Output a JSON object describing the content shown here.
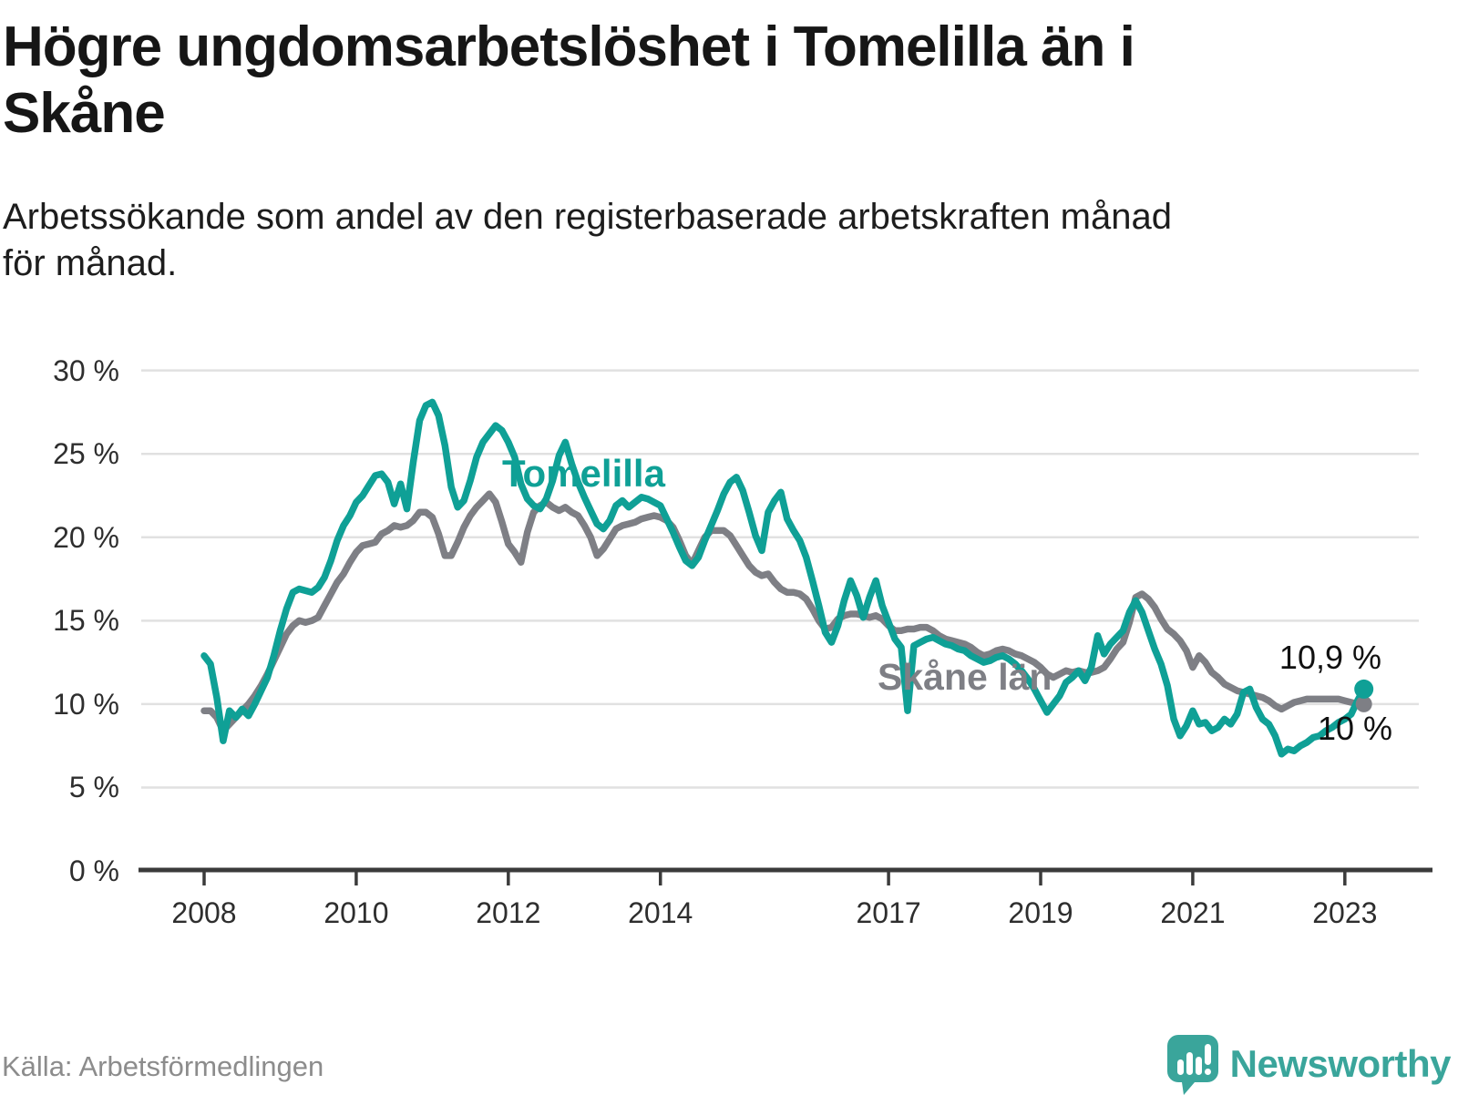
{
  "title_lines": [
    "Högre ungdomsarbetslöshet i Tomelilla än i",
    "Skåne"
  ],
  "subtitle_lines": [
    "Arbetssökande som andel av den registerbaserade arbetskraften månad",
    "för månad."
  ],
  "source_text": "Källa: Arbetsförmedlingen",
  "brand": {
    "name": "Newsworthy",
    "icon": "newsworthy-pin-barchart-icon",
    "color": "#3aa59b"
  },
  "chart_data": {
    "type": "line",
    "x_unit": "month",
    "x_start": "2008-01",
    "x_end": "2023-04",
    "x_tick_years": [
      2008,
      2010,
      2012,
      2014,
      2017,
      2019,
      2021,
      2023
    ],
    "y_ticks_percent": [
      0,
      5,
      10,
      15,
      20,
      25,
      30
    ],
    "y_tick_suffix": " %",
    "ylim": [
      0,
      31
    ],
    "grid": "horizontal",
    "legend": "inline-labels",
    "series": [
      {
        "name": "Skåne län",
        "color": "#7e7f85",
        "end_label": "10 %",
        "end_value": 10.0,
        "values": [
          9.6,
          9.6,
          9.2,
          8.4,
          8.8,
          9.2,
          9.6,
          10.0,
          10.5,
          11.1,
          11.8,
          12.6,
          13.4,
          14.2,
          14.7,
          15.0,
          14.9,
          15.0,
          15.2,
          15.9,
          16.6,
          17.3,
          17.8,
          18.5,
          19.1,
          19.5,
          19.6,
          19.7,
          20.2,
          20.4,
          20.7,
          20.6,
          20.7,
          21.0,
          21.5,
          21.5,
          21.2,
          20.2,
          18.9,
          18.9,
          19.7,
          20.6,
          21.3,
          21.8,
          22.2,
          22.6,
          22.1,
          20.9,
          19.6,
          19.1,
          18.5,
          20.3,
          21.5,
          21.9,
          22.1,
          21.8,
          21.6,
          21.8,
          21.5,
          21.3,
          20.7,
          20.0,
          18.9,
          19.3,
          19.9,
          20.5,
          20.7,
          20.8,
          20.9,
          21.1,
          21.2,
          21.3,
          21.2,
          21.0,
          20.6,
          19.8,
          18.9,
          18.4,
          19.2,
          20.0,
          20.4,
          20.4,
          20.4,
          20.1,
          19.5,
          18.9,
          18.3,
          17.9,
          17.7,
          17.8,
          17.3,
          16.9,
          16.7,
          16.7,
          16.6,
          16.3,
          15.7,
          15.0,
          14.5,
          14.6,
          15.1,
          15.3,
          15.4,
          15.4,
          15.3,
          15.2,
          15.3,
          15.1,
          14.7,
          14.4,
          14.4,
          14.5,
          14.5,
          14.6,
          14.6,
          14.4,
          14.1,
          13.9,
          13.8,
          13.7,
          13.6,
          13.4,
          13.1,
          12.9,
          13.0,
          13.2,
          13.3,
          13.2,
          13.0,
          12.9,
          12.7,
          12.5,
          12.2,
          11.8,
          11.6,
          11.8,
          12.0,
          11.9,
          12.0,
          11.9,
          11.9,
          12.0,
          12.2,
          12.7,
          13.3,
          13.7,
          14.9,
          16.4,
          16.6,
          16.3,
          15.8,
          15.1,
          14.5,
          14.2,
          13.8,
          13.2,
          12.2,
          12.9,
          12.5,
          11.9,
          11.6,
          11.2,
          11.0,
          10.8,
          10.7,
          10.6,
          10.5,
          10.4,
          10.2,
          9.9,
          9.7,
          9.9,
          10.1,
          10.2,
          10.3,
          10.3,
          10.3,
          10.3,
          10.3,
          10.3,
          10.2,
          10.1,
          10.0,
          10.0
        ]
      },
      {
        "name": "Tomelilla",
        "color": "#0fa096",
        "end_label": "10,9 %",
        "end_value": 10.9,
        "values": [
          12.9,
          12.4,
          10.4,
          7.8,
          9.6,
          9.2,
          9.7,
          9.3,
          10.0,
          10.8,
          11.6,
          12.9,
          14.4,
          15.7,
          16.7,
          16.9,
          16.8,
          16.7,
          17.0,
          17.6,
          18.6,
          19.8,
          20.7,
          21.3,
          22.1,
          22.5,
          23.1,
          23.7,
          23.8,
          23.3,
          22.0,
          23.2,
          21.7,
          24.5,
          27.0,
          27.9,
          28.1,
          27.3,
          25.5,
          23.0,
          21.8,
          22.2,
          23.4,
          24.8,
          25.7,
          26.2,
          26.7,
          26.4,
          25.7,
          24.8,
          23.2,
          22.3,
          21.9,
          21.7,
          22.3,
          23.4,
          24.9,
          25.7,
          24.4,
          23.3,
          22.4,
          21.6,
          20.8,
          20.5,
          21.0,
          21.9,
          22.2,
          21.8,
          22.1,
          22.4,
          22.3,
          22.1,
          21.9,
          21.1,
          20.3,
          19.4,
          18.6,
          18.3,
          18.8,
          19.8,
          20.7,
          21.6,
          22.6,
          23.3,
          23.6,
          22.8,
          21.5,
          20.1,
          19.2,
          21.5,
          22.2,
          22.7,
          21.1,
          20.4,
          19.8,
          18.8,
          17.4,
          15.9,
          14.3,
          13.7,
          14.7,
          16.2,
          17.4,
          16.5,
          15.2,
          16.4,
          17.4,
          15.9,
          14.9,
          13.9,
          13.4,
          9.6,
          13.5,
          13.7,
          13.9,
          14.0,
          13.8,
          13.6,
          13.5,
          13.3,
          13.2,
          12.9,
          12.7,
          12.5,
          12.6,
          12.8,
          12.9,
          12.7,
          12.4,
          12.0,
          11.5,
          10.9,
          10.2,
          9.5,
          10.0,
          10.5,
          11.3,
          11.6,
          12.0,
          11.4,
          12.2,
          14.1,
          13.0,
          13.6,
          14.0,
          14.4,
          15.5,
          16.2,
          15.5,
          14.4,
          13.3,
          12.4,
          11.1,
          9.1,
          8.1,
          8.7,
          9.6,
          8.8,
          8.9,
          8.4,
          8.6,
          9.1,
          8.8,
          9.4,
          10.7,
          10.9,
          9.8,
          9.1,
          8.8,
          8.1,
          7.0,
          7.3,
          7.2,
          7.5,
          7.7,
          8.0,
          8.1,
          8.4,
          8.6,
          8.9,
          9.1,
          9.4,
          10.2,
          10.9
        ]
      }
    ]
  }
}
